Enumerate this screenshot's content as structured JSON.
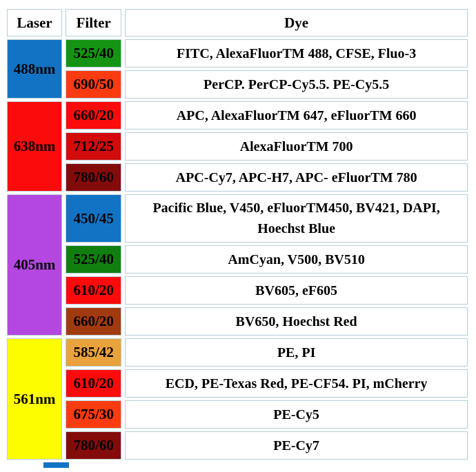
{
  "table": {
    "headers": [
      "Laser",
      "Filter",
      "Dye"
    ],
    "groups": [
      {
        "laser": "488nm",
        "laser_color": "#1273c4",
        "rows": [
          {
            "filter": "525/40",
            "filter_color": "#149412",
            "dyes": "FITC, AlexaFluorTM 488, CFSE, Fluo-3"
          },
          {
            "filter": "690/50",
            "filter_color": "#fb3b10",
            "dyes": "PerCP. PerCP-Cy5.5. PE-Cy5.5"
          }
        ]
      },
      {
        "laser": "638nm",
        "laser_color": "#fb0b0b",
        "rows": [
          {
            "filter": "660/20",
            "filter_color": "#fb0b0b",
            "dyes": "APC, AlexaFluorTM 647, eFluorTM 660"
          },
          {
            "filter": "712/25",
            "filter_color": "#d20b0b",
            "dyes": "AlexaFluorTM 700"
          },
          {
            "filter": "780/60",
            "filter_color": "#850b0b",
            "dyes": "APC-Cy7, APC-H7, APC- eFluorTM 780"
          }
        ]
      },
      {
        "laser": "405nm",
        "laser_color": "#b347e0",
        "rows": [
          {
            "filter": "450/45",
            "filter_color": "#1273c4",
            "dyes": "Pacific Blue, V450, eFluorTM450, BV421, DAPI, Hoechst Blue"
          },
          {
            "filter": "525/40",
            "filter_color": "#117f10",
            "dyes": "AmCyan, V500, BV510"
          },
          {
            "filter": "610/20",
            "filter_color": "#fb0b0b",
            "dyes": "BV605, eF605"
          },
          {
            "filter": "660/20",
            "filter_color": "#a23a10",
            "dyes": "BV650, Hoechst Red"
          }
        ]
      },
      {
        "laser": "561nm",
        "laser_color": "#fdfd00",
        "rows": [
          {
            "filter": "585/42",
            "filter_color": "#e9a23c",
            "dyes": "PE, PI"
          },
          {
            "filter": "610/20",
            "filter_color": "#fb0b0b",
            "dyes": "ECD, PE-Texas Red, PE-CF54. PI, mCherry"
          },
          {
            "filter": "675/30",
            "filter_color": "#fb3b10",
            "dyes": "PE-Cy5"
          },
          {
            "filter": "780/60",
            "filter_color": "#850b0b",
            "dyes": "PE-Cy7"
          }
        ]
      }
    ],
    "partial_next_laser_color": "#1273c4",
    "border_color": "#b6cdd9"
  },
  "chart_data": {
    "type": "table",
    "columns": [
      "Laser",
      "Filter",
      "Dye"
    ],
    "rows": [
      [
        "488nm",
        "525/40",
        "FITC, AlexaFluorTM 488, CFSE, Fluo-3"
      ],
      [
        "488nm",
        "690/50",
        "PerCP. PerCP-Cy5.5. PE-Cy5.5"
      ],
      [
        "638nm",
        "660/20",
        "APC, AlexaFluorTM 647, eFluorTM 660"
      ],
      [
        "638nm",
        "712/25",
        "AlexaFluorTM 700"
      ],
      [
        "638nm",
        "780/60",
        "APC-Cy7, APC-H7, APC- eFluorTM 780"
      ],
      [
        "405nm",
        "450/45",
        "Pacific Blue, V450, eFluorTM450, BV421, DAPI, Hoechst Blue"
      ],
      [
        "405nm",
        "525/40",
        "AmCyan, V500, BV510"
      ],
      [
        "405nm",
        "610/20",
        "BV605, eF605"
      ],
      [
        "405nm",
        "660/20",
        "BV650, Hoechst Red"
      ],
      [
        "561nm",
        "585/42",
        "PE, PI"
      ],
      [
        "561nm",
        "610/20",
        "ECD, PE-Texas Red, PE-CF54. PI, mCherry"
      ],
      [
        "561nm",
        "675/30",
        "PE-Cy5"
      ],
      [
        "561nm",
        "780/60",
        "PE-Cy7"
      ]
    ]
  }
}
